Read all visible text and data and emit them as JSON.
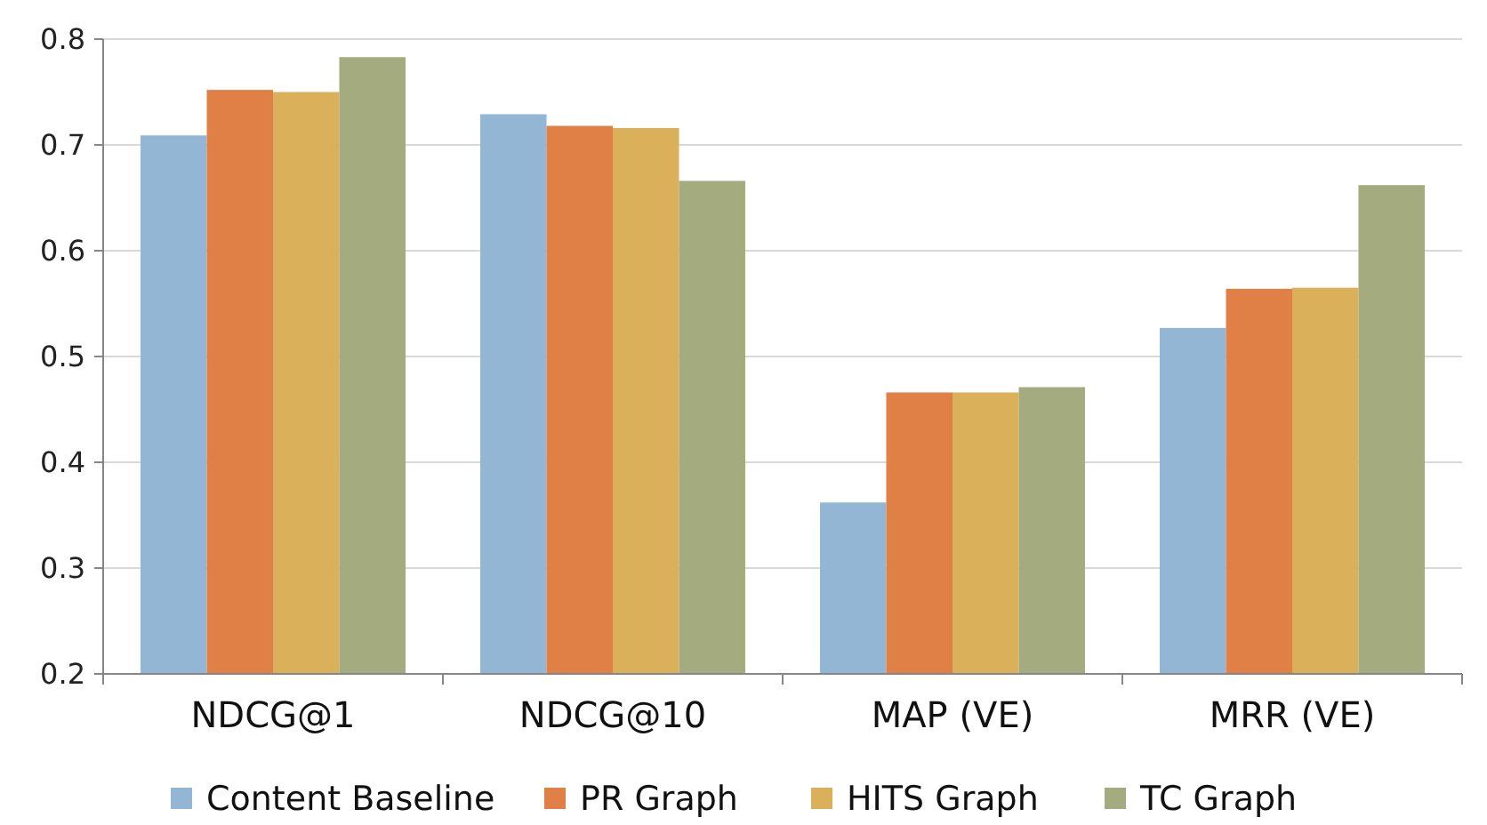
{
  "chart_data": {
    "type": "bar",
    "categories": [
      "NDCG@1",
      "NDCG@10",
      "MAP (VE)",
      "MRR (VE)"
    ],
    "series": [
      {
        "name": "Content Baseline",
        "color": "#93b6d4",
        "values": [
          0.709,
          0.729,
          0.362,
          0.527
        ]
      },
      {
        "name": "PR Graph",
        "color": "#e07f46",
        "values": [
          0.752,
          0.718,
          0.466,
          0.564
        ]
      },
      {
        "name": "HITS Graph",
        "color": "#dbb05a",
        "values": [
          0.75,
          0.716,
          0.466,
          0.565
        ]
      },
      {
        "name": "TC Graph",
        "color": "#a3ab7f",
        "values": [
          0.783,
          0.666,
          0.471,
          0.662
        ]
      }
    ],
    "ylim": [
      0.2,
      0.8
    ],
    "yticks": [
      0.2,
      0.3,
      0.4,
      0.5,
      0.6,
      0.7,
      0.8
    ],
    "grid": "y",
    "legend": "bottom"
  }
}
